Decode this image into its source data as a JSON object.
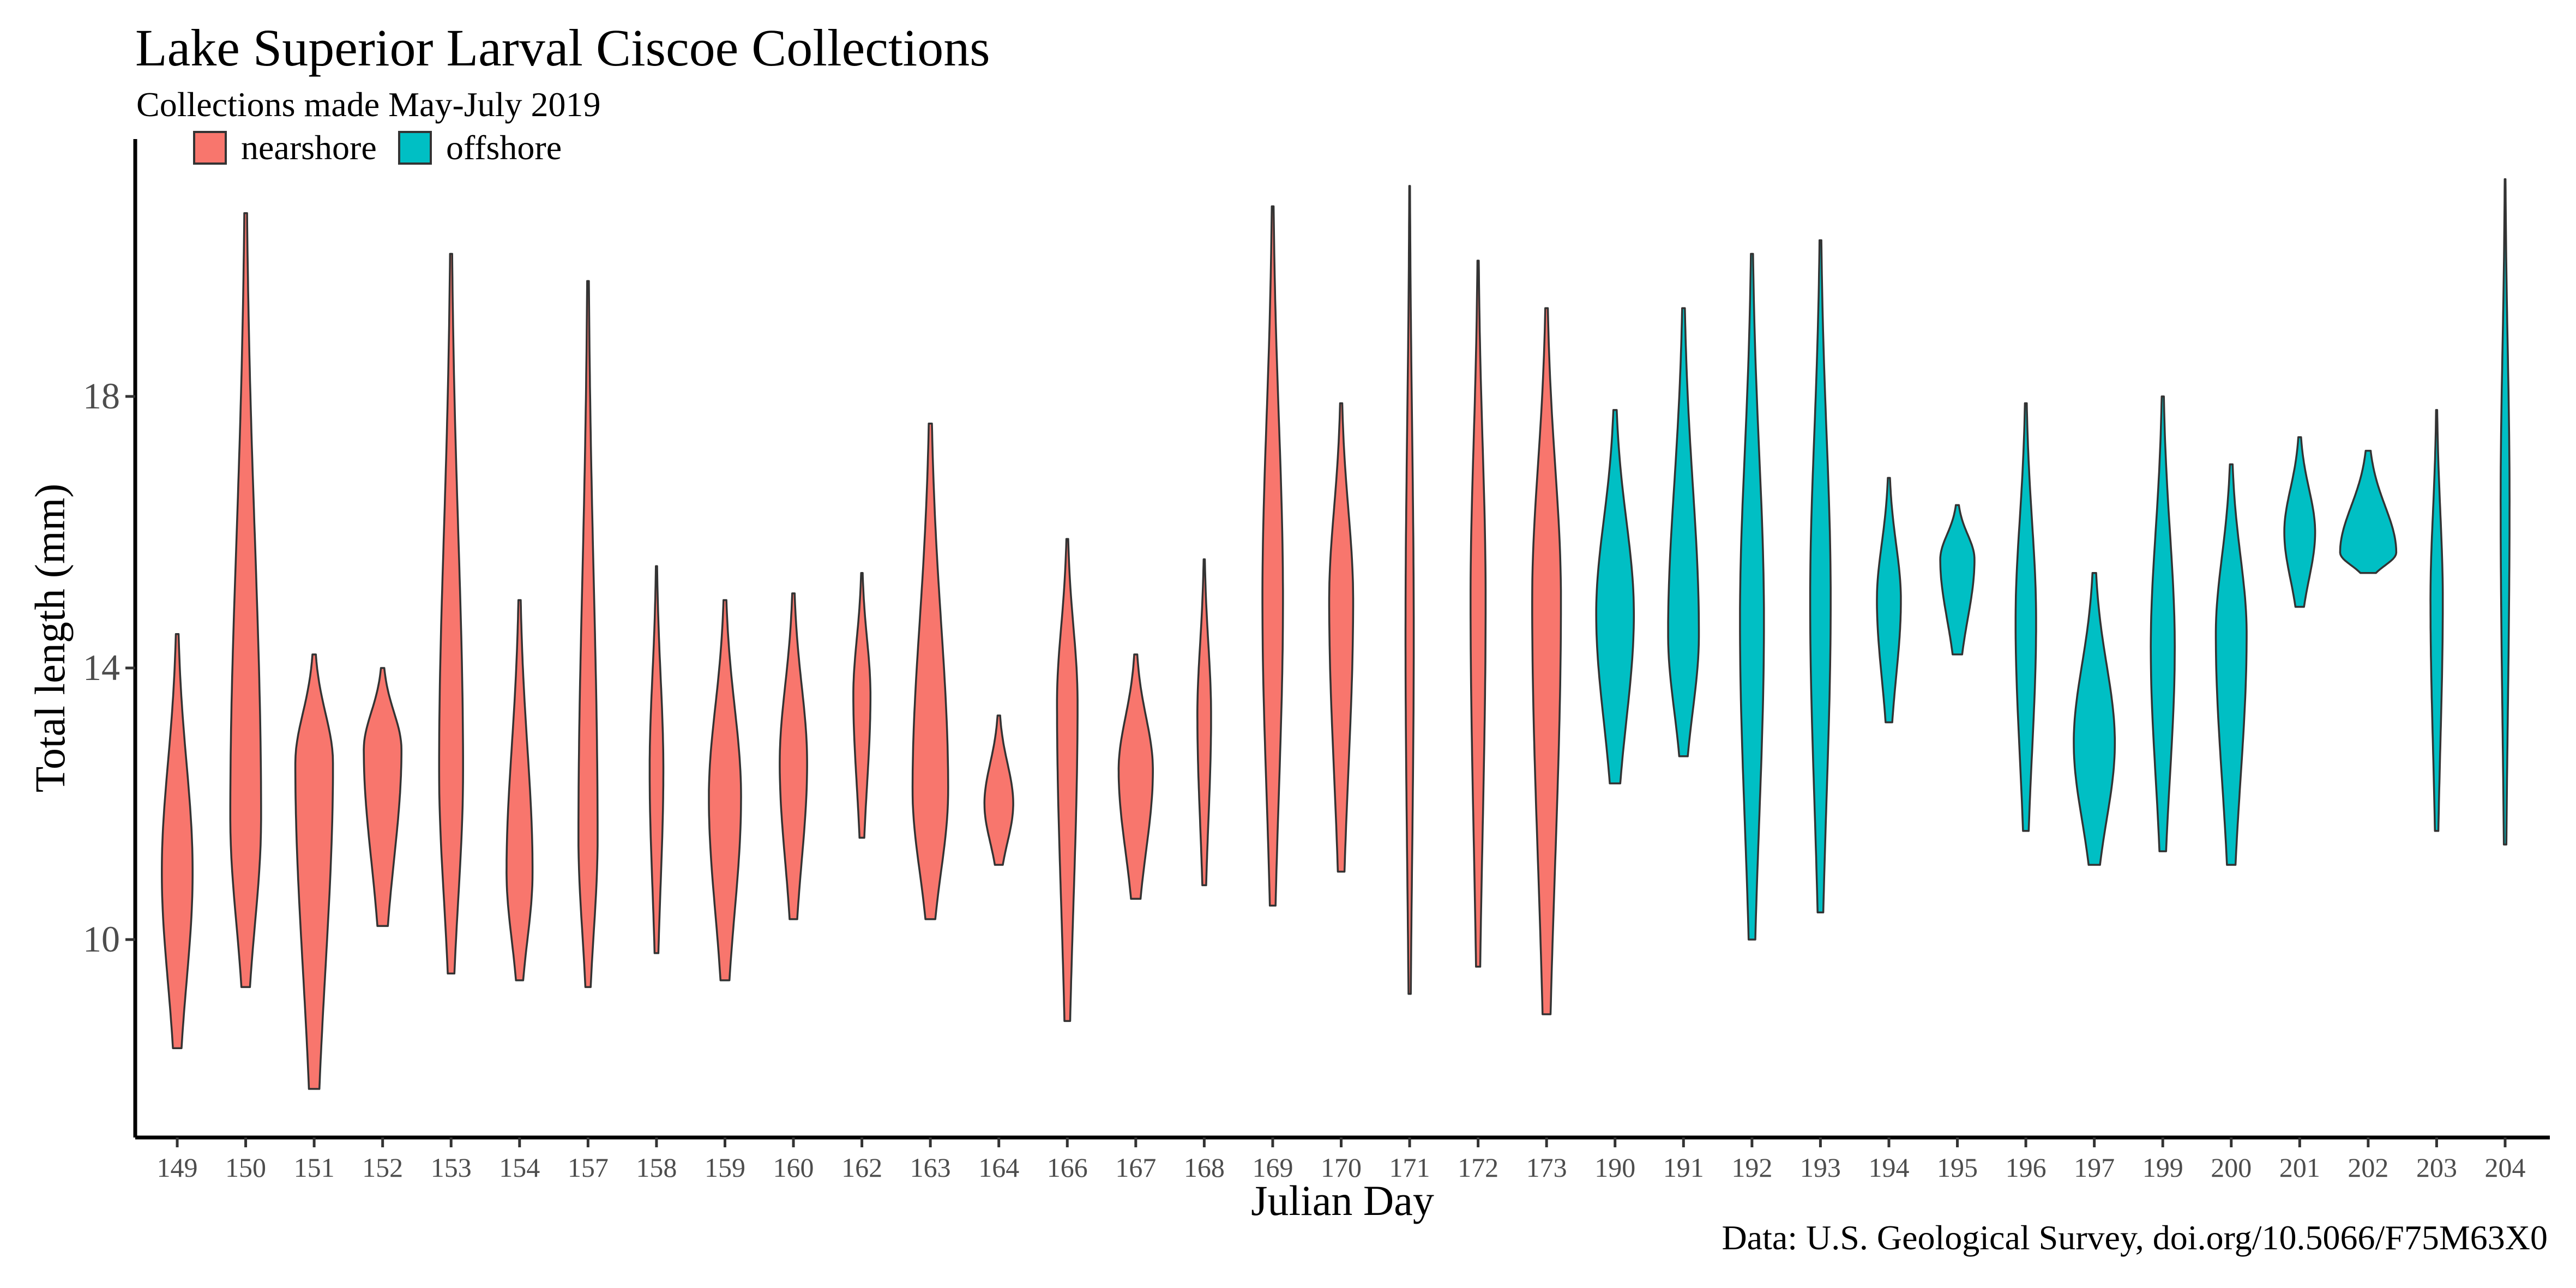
{
  "chart_data": {
    "type": "violin",
    "title": "Lake Superior Larval Ciscoe Collections",
    "subtitle": "Collections made May-July 2019",
    "caption": "Data: U.S. Geological Survey, doi.org/10.5066/F75M63X0",
    "xlabel": "Julian Day",
    "ylabel": "Total length (mm)",
    "ylim": [
      7.2,
      22.1
    ],
    "yticks": [
      10,
      14,
      18
    ],
    "grid": false,
    "legend": {
      "placement": "top-left",
      "entries": [
        {
          "key": "nearshore",
          "label": "nearshore",
          "color": "#F8766D"
        },
        {
          "key": "offshore",
          "label": "offshore",
          "color": "#00BFC4"
        }
      ]
    },
    "categories": [
      "149",
      "150",
      "151",
      "152",
      "153",
      "154",
      "157",
      "158",
      "159",
      "160",
      "162",
      "163",
      "164",
      "166",
      "167",
      "168",
      "169",
      "170",
      "171",
      "172",
      "173",
      "190",
      "191",
      "192",
      "193",
      "194",
      "195",
      "196",
      "197",
      "199",
      "200",
      "201",
      "202",
      "203",
      "204"
    ],
    "series": [
      {
        "day": "149",
        "group": "nearshore",
        "min": 8.4,
        "max": 14.5,
        "peak": 11.0,
        "width": 0.45
      },
      {
        "day": "150",
        "group": "nearshore",
        "min": 9.3,
        "max": 20.7,
        "peak": 11.8,
        "width": 0.45
      },
      {
        "day": "151",
        "group": "nearshore",
        "min": 7.8,
        "max": 14.2,
        "peak": 12.6,
        "width": 0.55
      },
      {
        "day": "152",
        "group": "nearshore",
        "min": 10.2,
        "max": 14.0,
        "peak": 12.8,
        "width": 0.55
      },
      {
        "day": "153",
        "group": "nearshore",
        "min": 9.5,
        "max": 20.1,
        "peak": 12.5,
        "width": 0.35
      },
      {
        "day": "154",
        "group": "nearshore",
        "min": 9.4,
        "max": 15.0,
        "peak": 11.0,
        "width": 0.38
      },
      {
        "day": "157",
        "group": "nearshore",
        "min": 9.3,
        "max": 19.7,
        "peak": 11.5,
        "width": 0.28
      },
      {
        "day": "158",
        "group": "nearshore",
        "min": 9.8,
        "max": 15.5,
        "peak": 12.5,
        "width": 0.2
      },
      {
        "day": "159",
        "group": "nearshore",
        "min": 9.4,
        "max": 15.0,
        "peak": 12.1,
        "width": 0.47
      },
      {
        "day": "160",
        "group": "nearshore",
        "min": 10.3,
        "max": 15.1,
        "peak": 12.6,
        "width": 0.4
      },
      {
        "day": "162",
        "group": "nearshore",
        "min": 11.5,
        "max": 15.4,
        "peak": 13.6,
        "width": 0.25
      },
      {
        "day": "163",
        "group": "nearshore",
        "min": 10.3,
        "max": 17.6,
        "peak": 12.2,
        "width": 0.52
      },
      {
        "day": "164",
        "group": "nearshore",
        "min": 11.1,
        "max": 13.3,
        "peak": 12.0,
        "width": 0.42
      },
      {
        "day": "166",
        "group": "nearshore",
        "min": 8.8,
        "max": 15.9,
        "peak": 13.5,
        "width": 0.3
      },
      {
        "day": "167",
        "group": "nearshore",
        "min": 10.6,
        "max": 14.2,
        "peak": 12.5,
        "width": 0.5
      },
      {
        "day": "168",
        "group": "nearshore",
        "min": 10.8,
        "max": 15.6,
        "peak": 13.3,
        "width": 0.2
      },
      {
        "day": "169",
        "group": "nearshore",
        "min": 10.5,
        "max": 20.8,
        "peak": 15.0,
        "width": 0.3
      },
      {
        "day": "170",
        "group": "nearshore",
        "min": 11.0,
        "max": 17.9,
        "peak": 15.0,
        "width": 0.35
      },
      {
        "day": "171",
        "group": "nearshore",
        "min": 9.2,
        "max": 21.1,
        "peak": 14.5,
        "width": 0.12
      },
      {
        "day": "172",
        "group": "nearshore",
        "min": 9.6,
        "max": 20.0,
        "peak": 15.0,
        "width": 0.22
      },
      {
        "day": "173",
        "group": "nearshore",
        "min": 8.9,
        "max": 19.3,
        "peak": 15.0,
        "width": 0.42
      },
      {
        "day": "190",
        "group": "offshore",
        "min": 12.3,
        "max": 17.8,
        "peak": 14.8,
        "width": 0.55
      },
      {
        "day": "191",
        "group": "offshore",
        "min": 12.7,
        "max": 19.3,
        "peak": 14.5,
        "width": 0.45
      },
      {
        "day": "192",
        "group": "offshore",
        "min": 10.0,
        "max": 20.1,
        "peak": 14.7,
        "width": 0.35
      },
      {
        "day": "193",
        "group": "offshore",
        "min": 10.4,
        "max": 20.3,
        "peak": 15.0,
        "width": 0.3
      },
      {
        "day": "194",
        "group": "offshore",
        "min": 13.2,
        "max": 16.8,
        "peak": 15.0,
        "width": 0.35
      },
      {
        "day": "195",
        "group": "offshore",
        "min": 14.2,
        "max": 16.4,
        "peak": 15.6,
        "width": 0.5
      },
      {
        "day": "196",
        "group": "offshore",
        "min": 11.6,
        "max": 17.9,
        "peak": 14.7,
        "width": 0.3
      },
      {
        "day": "197",
        "group": "offshore",
        "min": 11.1,
        "max": 15.4,
        "peak": 12.9,
        "width": 0.6
      },
      {
        "day": "199",
        "group": "offshore",
        "min": 11.3,
        "max": 18.0,
        "peak": 14.3,
        "width": 0.35
      },
      {
        "day": "200",
        "group": "offshore",
        "min": 11.1,
        "max": 17.0,
        "peak": 14.5,
        "width": 0.45
      },
      {
        "day": "201",
        "group": "offshore",
        "min": 14.9,
        "max": 17.4,
        "peak": 16.0,
        "width": 0.45
      },
      {
        "day": "202",
        "group": "offshore",
        "min": 15.4,
        "max": 17.2,
        "peak": 15.7,
        "width": 0.82
      },
      {
        "day": "203",
        "group": "offshore",
        "min": 11.6,
        "max": 17.8,
        "peak": 15.0,
        "width": 0.18
      },
      {
        "day": "204",
        "group": "offshore",
        "min": 11.4,
        "max": 21.2,
        "peak": 16.5,
        "width": 0.13
      }
    ]
  }
}
